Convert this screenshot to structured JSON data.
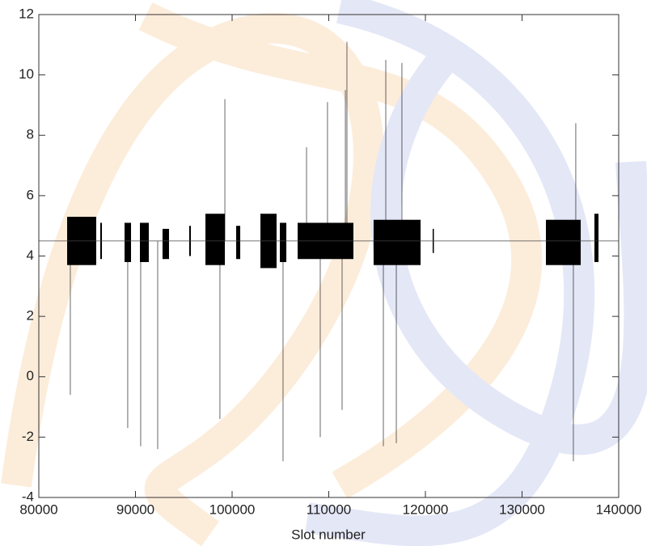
{
  "chart_data": {
    "type": "range",
    "x_label": "Slot number",
    "xlim": [
      80000,
      140000
    ],
    "xticks": [
      80000,
      90000,
      100000,
      110000,
      120000,
      130000,
      140000
    ],
    "ylim": [
      -4,
      12
    ],
    "yticks": [
      -4,
      -2,
      0,
      2,
      4,
      6,
      8,
      10,
      12
    ],
    "color": "#000000",
    "ref_line": 4.5,
    "bands": [
      {
        "start": 82930,
        "end": 85940,
        "low": 3.7,
        "high": 5.3
      },
      {
        "start": 86360,
        "end": 86530,
        "low": 3.9,
        "high": 5.1
      },
      {
        "start": 88870,
        "end": 89540,
        "low": 3.8,
        "high": 5.1
      },
      {
        "start": 90460,
        "end": 91380,
        "low": 3.8,
        "high": 5.1
      },
      {
        "start": 92800,
        "end": 93470,
        "low": 3.9,
        "high": 4.9
      },
      {
        "start": 95560,
        "end": 95730,
        "low": 4.0,
        "high": 5.0
      },
      {
        "start": 97240,
        "end": 99250,
        "low": 3.7,
        "high": 5.4
      },
      {
        "start": 100420,
        "end": 100840,
        "low": 3.9,
        "high": 5.0
      },
      {
        "start": 102930,
        "end": 104600,
        "low": 3.6,
        "high": 5.4
      },
      {
        "start": 104940,
        "end": 105610,
        "low": 3.8,
        "high": 5.1
      },
      {
        "start": 106780,
        "end": 112550,
        "low": 3.9,
        "high": 5.1
      },
      {
        "start": 114640,
        "end": 119500,
        "low": 3.7,
        "high": 5.2
      },
      {
        "start": 120750,
        "end": 120850,
        "low": 4.1,
        "high": 4.9
      },
      {
        "start": 132470,
        "end": 136070,
        "low": 3.7,
        "high": 5.2
      },
      {
        "start": 137490,
        "end": 137910,
        "low": 3.8,
        "high": 5.4
      }
    ],
    "spikes": [
      {
        "x": 83260,
        "y": -0.6
      },
      {
        "x": 89200,
        "y": -1.7
      },
      {
        "x": 90540,
        "y": -2.3
      },
      {
        "x": 92300,
        "y": -2.4
      },
      {
        "x": 98740,
        "y": -1.4
      },
      {
        "x": 99250,
        "y": 9.2
      },
      {
        "x": 105270,
        "y": -2.8
      },
      {
        "x": 107700,
        "y": 7.6
      },
      {
        "x": 109120,
        "y": -2.0
      },
      {
        "x": 109870,
        "y": 9.1
      },
      {
        "x": 111380,
        "y": -1.1
      },
      {
        "x": 111720,
        "y": 9.5
      },
      {
        "x": 111880,
        "y": 11.1
      },
      {
        "x": 115650,
        "y": -2.3
      },
      {
        "x": 115900,
        "y": 10.5
      },
      {
        "x": 116990,
        "y": -2.2
      },
      {
        "x": 117570,
        "y": 10.4
      },
      {
        "x": 135310,
        "y": -2.8
      },
      {
        "x": 135560,
        "y": 8.4
      }
    ]
  }
}
